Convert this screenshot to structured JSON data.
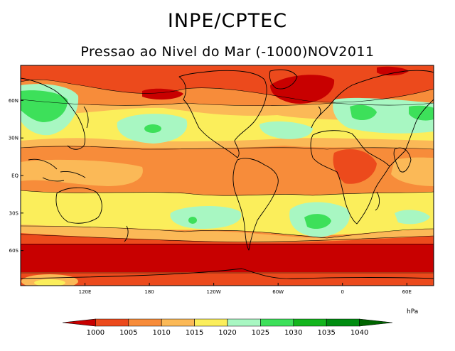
{
  "header": {
    "title": "INPE/CPTEC",
    "subtitle": "Pressao ao Nivel do Mar (-1000)NOV2011"
  },
  "map": {
    "lon_ticks": [
      {
        "value": 120,
        "label": "120E"
      },
      {
        "value": 180,
        "label": "180"
      },
      {
        "value": 240,
        "label": "120W"
      },
      {
        "value": 300,
        "label": "60W"
      },
      {
        "value": 360,
        "label": "0"
      },
      {
        "value": 420,
        "label": "60E"
      }
    ],
    "lat_ticks": [
      {
        "value": 60,
        "label": "60N"
      },
      {
        "value": 30,
        "label": "30N"
      },
      {
        "value": 0,
        "label": "EQ"
      },
      {
        "value": -30,
        "label": "30S"
      },
      {
        "value": -60,
        "label": "60S"
      }
    ],
    "lon_range": [
      60,
      445
    ],
    "lat_range": [
      -88,
      88
    ]
  },
  "colorbar": {
    "unit": "hPa",
    "levels": [
      "1000",
      "1005",
      "1010",
      "1015",
      "1020",
      "1025",
      "1030",
      "1035",
      "1040"
    ],
    "colors": [
      "#c80000",
      "#ec4a1c",
      "#f78c3a",
      "#fbb957",
      "#fbee5b",
      "#a8f7c2",
      "#3de05a",
      "#13b51d",
      "#008c10",
      "#006400"
    ]
  },
  "fields": {
    "band_colors": {
      "deep_red": "#c80000",
      "red_orange": "#ec4a1c",
      "orange": "#f78c3a",
      "light_orange": "#fbb957",
      "yellow": "#fbee5b",
      "mint": "#a8f7c2",
      "green": "#3de05a",
      "dark_green": "#13b51d"
    }
  }
}
